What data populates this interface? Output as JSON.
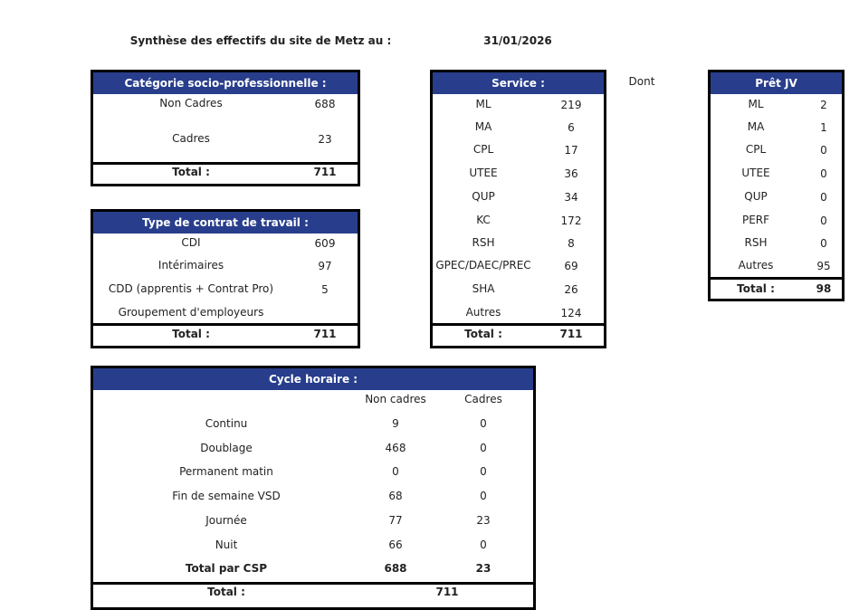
{
  "title": "Synthèse des effectifs du site de Metz au :",
  "date": "31/01/2026",
  "dont_label": "Dont",
  "categorie": {
    "header": "Catégorie socio-professionnelle :",
    "rows": [
      {
        "label": "Non Cadres",
        "value": "688"
      },
      {
        "label": "Cadres",
        "value": "23"
      }
    ],
    "total_label": "Total :",
    "total": "711"
  },
  "contrat": {
    "header": "Type de contrat de travail :",
    "rows": [
      {
        "label": "CDI",
        "value": "609"
      },
      {
        "label": "Intérimaires",
        "value": "97"
      },
      {
        "label": "CDD (apprentis + Contrat Pro)",
        "value": "5"
      },
      {
        "label": "Groupement d'employeurs",
        "value": ""
      }
    ],
    "total_label": "Total :",
    "total": "711"
  },
  "service": {
    "header": "Service :",
    "rows": [
      {
        "label": "ML",
        "value": "219"
      },
      {
        "label": "MA",
        "value": "6"
      },
      {
        "label": "CPL",
        "value": "17"
      },
      {
        "label": "UTEE",
        "value": "36"
      },
      {
        "label": "QUP",
        "value": "34"
      },
      {
        "label": "KC",
        "value": "172"
      },
      {
        "label": "RSH",
        "value": "8"
      },
      {
        "label": "GPEC/DAEC/PREC",
        "value": "69"
      },
      {
        "label": "SHA",
        "value": "26"
      },
      {
        "label": "Autres",
        "value": "124"
      }
    ],
    "total_label": "Total :",
    "total": "711"
  },
  "pret_jv": {
    "header": "Prêt JV",
    "rows": [
      {
        "label": "ML",
        "value": "2"
      },
      {
        "label": "MA",
        "value": "1"
      },
      {
        "label": "CPL",
        "value": "0"
      },
      {
        "label": "UTEE",
        "value": "0"
      },
      {
        "label": "QUP",
        "value": "0"
      },
      {
        "label": "PERF",
        "value": "0"
      },
      {
        "label": "RSH",
        "value": "0"
      },
      {
        "label": "Autres",
        "value": "95"
      }
    ],
    "total_label": "Total :",
    "total": "98"
  },
  "cycle": {
    "header": "Cycle horaire :",
    "col_headers": [
      "Non cadres",
      "Cadres"
    ],
    "rows": [
      {
        "label": "Continu",
        "non_cadres": "9",
        "cadres": "0"
      },
      {
        "label": "Doublage",
        "non_cadres": "468",
        "cadres": "0"
      },
      {
        "label": "Permanent matin",
        "non_cadres": "0",
        "cadres": "0"
      },
      {
        "label": "Fin de semaine VSD",
        "non_cadres": "68",
        "cadres": "0"
      },
      {
        "label": "Journée",
        "non_cadres": "77",
        "cadres": "23"
      },
      {
        "label": "Nuit",
        "non_cadres": "66",
        "cadres": "0"
      }
    ],
    "csp_label": "Total par CSP",
    "csp_non_cadres": "688",
    "csp_cadres": "23",
    "total_label": "Total :",
    "total": "711"
  }
}
